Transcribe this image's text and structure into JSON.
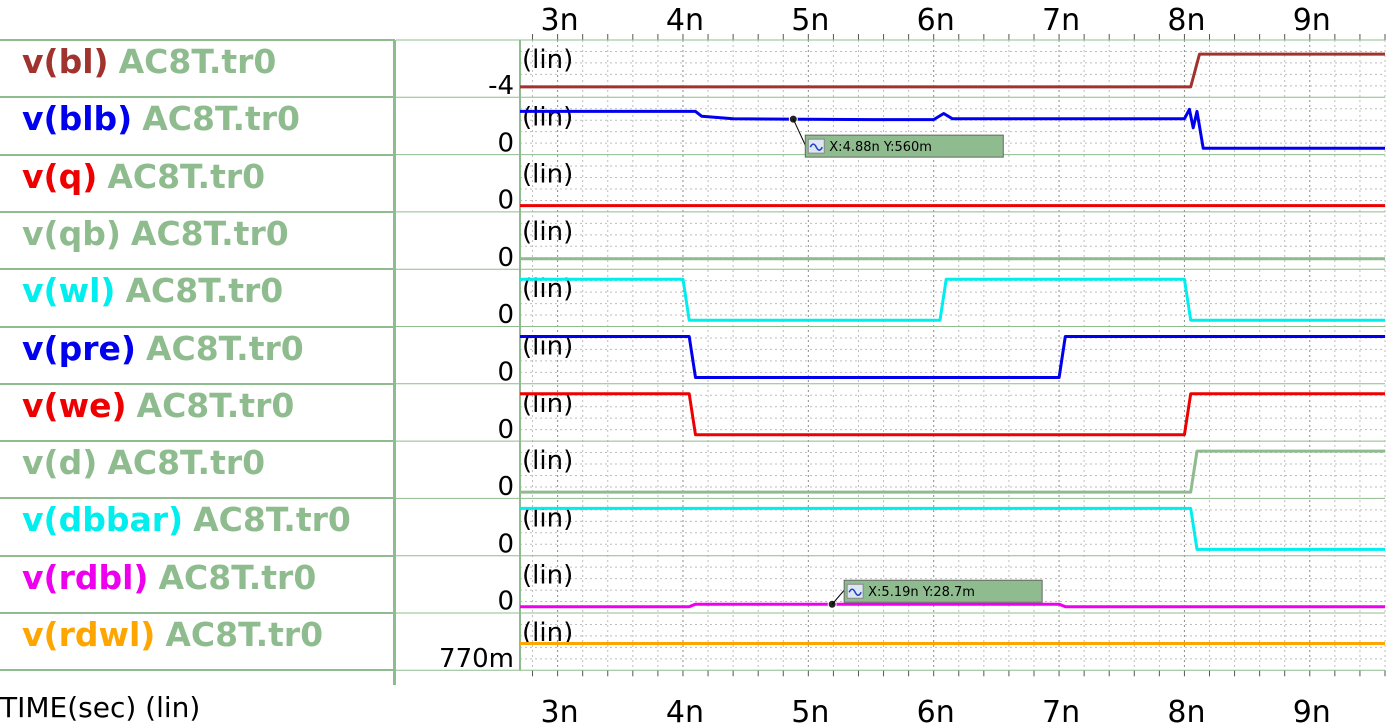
{
  "chart_data": {
    "type": "line",
    "xlabel": "TIME(sec) (lin)",
    "x_ticks": [
      "3n",
      "4n",
      "5n",
      "6n",
      "7n",
      "8n",
      "9n"
    ],
    "x_tick_values": [
      3,
      4,
      5,
      6,
      7,
      8,
      9
    ],
    "xlim": [
      2.7,
      9.6
    ],
    "config": "AC8T.tr0",
    "scale_label": "(lin)",
    "grid": true,
    "series": [
      {
        "name": "v(bl)",
        "color": "#a0332d",
        "y_tick": "-4",
        "x": [
          2.7,
          8.05,
          8.12,
          9.6
        ],
        "y": [
          0.1,
          0.1,
          0.9,
          0.9
        ]
      },
      {
        "name": "v(blb)",
        "color": "#0000ee",
        "y_tick": "0",
        "x": [
          2.7,
          4.1,
          4.15,
          4.4,
          5.5,
          6.0,
          6.08,
          6.15,
          6.3,
          8.0,
          8.04,
          8.07,
          8.1,
          8.15,
          9.6
        ],
        "y": [
          0.9,
          0.9,
          0.78,
          0.72,
          0.7,
          0.7,
          0.85,
          0.72,
          0.72,
          0.72,
          0.95,
          0.5,
          0.9,
          0.0,
          0.0
        ]
      },
      {
        "name": "v(q)",
        "color": "#ee0000",
        "y_tick": "0",
        "x": [
          2.7,
          9.6
        ],
        "y": [
          0.0,
          0.0
        ]
      },
      {
        "name": "v(qb)",
        "color": "#8fbc8f",
        "y_tick": "0",
        "x": [
          2.7,
          9.6
        ],
        "y": [
          0.1,
          0.1
        ]
      },
      {
        "name": "v(wl)",
        "color": "#00eeee",
        "y_tick": "0",
        "x": [
          2.7,
          4.0,
          4.05,
          6.05,
          6.1,
          8.0,
          8.05,
          9.6
        ],
        "y": [
          1,
          1,
          0,
          0,
          1,
          1,
          0,
          0
        ]
      },
      {
        "name": "v(pre)",
        "color": "#0000ee",
        "y_tick": "0",
        "x": [
          2.7,
          4.05,
          4.1,
          7.0,
          7.05,
          9.6
        ],
        "y": [
          1,
          1,
          0,
          0,
          1,
          1
        ]
      },
      {
        "name": "v(we)",
        "color": "#ee0000",
        "y_tick": "0",
        "x": [
          2.7,
          4.05,
          4.1,
          8.0,
          8.05,
          9.6
        ],
        "y": [
          1,
          1,
          0,
          0,
          1,
          1
        ]
      },
      {
        "name": "v(d)",
        "color": "#8fbc8f",
        "y_tick": "0",
        "x": [
          2.7,
          8.05,
          8.1,
          9.6
        ],
        "y": [
          0,
          0,
          1,
          1
        ]
      },
      {
        "name": "v(dbbar)",
        "color": "#00eeee",
        "y_tick": "0",
        "x": [
          2.7,
          8.05,
          8.1,
          9.6
        ],
        "y": [
          1,
          1,
          0,
          0
        ]
      },
      {
        "name": "v(rdbl)",
        "color": "#ee00ee",
        "y_tick": "0",
        "x": [
          2.7,
          4.05,
          4.1,
          7.0,
          7.05,
          9.6
        ],
        "y": [
          0.0,
          0.0,
          0.06,
          0.06,
          0.0,
          0.0
        ]
      },
      {
        "name": "v(rdwl)",
        "color": "#ffa500",
        "y_tick": "770m",
        "x": [
          2.7,
          9.6
        ],
        "y": [
          0.5,
          0.5
        ]
      }
    ],
    "cursors": [
      {
        "row": 1,
        "x": 4.88,
        "text": "X:4.88n Y:560m"
      },
      {
        "row": 9,
        "x": 5.19,
        "text": "X:5.19n Y:28.7m"
      }
    ]
  }
}
